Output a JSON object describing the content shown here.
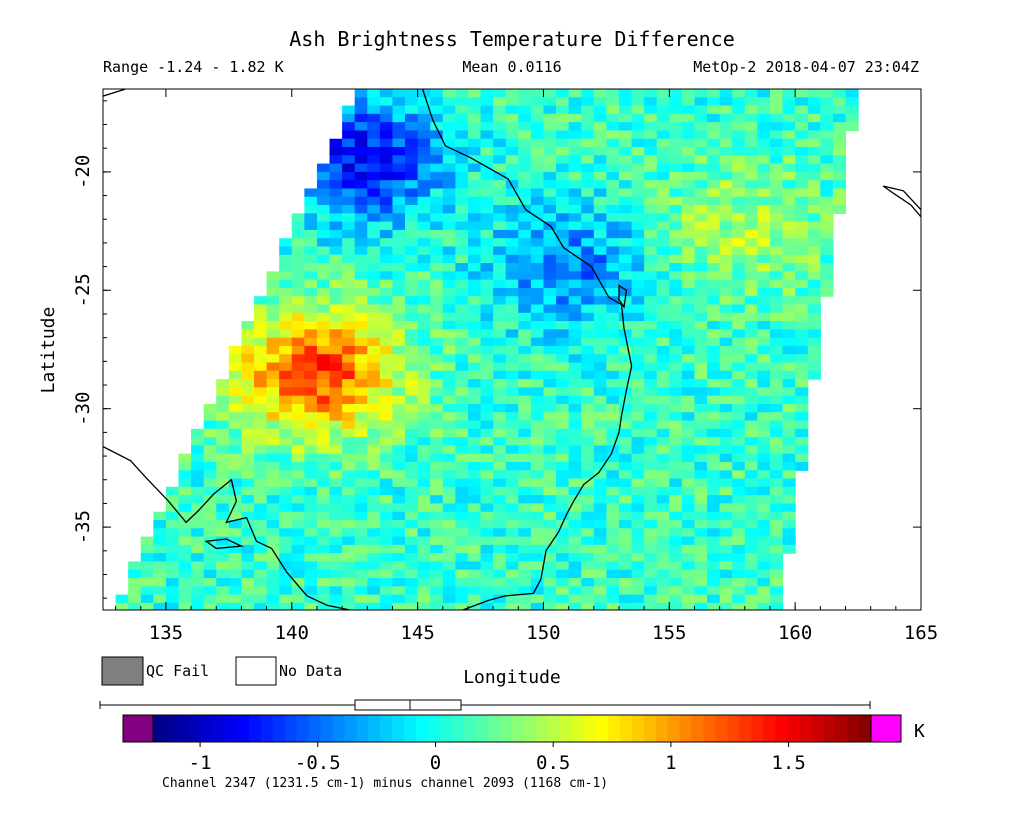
{
  "chart_data": {
    "type": "heatmap",
    "title": "Ash Brightness Temperature Difference",
    "header": {
      "range": "Range -1.24 - 1.82 K",
      "mean": "Mean 0.0116",
      "satellite_time": "MetOp-2 2018-04-07 23:04Z"
    },
    "xlabel": "Longitude",
    "ylabel": "Latitude",
    "xlim": [
      132.5,
      165
    ],
    "ylim": [
      -38.5,
      -16.5
    ],
    "x_ticks": [
      135,
      140,
      145,
      150,
      155,
      160,
      165
    ],
    "y_ticks": [
      -20,
      -25,
      -30,
      -35
    ],
    "colorbar": {
      "range": [
        -1.2,
        1.85
      ],
      "ticks": [
        -1,
        -0.5,
        0,
        0.5,
        1,
        1.5
      ],
      "tick_labels": [
        "-1",
        "-0.5",
        "0",
        "0.5",
        "1",
        "1.5"
      ],
      "unit": "K",
      "underflow_color": "#800080",
      "overflow_color": "#ff00ff",
      "caption": "Channel 2347 (1231.5 cm-1) minus channel 2093 (1168 cm-1)"
    },
    "legend": [
      {
        "label": "QC Fail",
        "color": "#808080"
      },
      {
        "label": "No Data",
        "color": "#ffffff"
      }
    ],
    "colormap": "jet",
    "swath_corners": {
      "top_left": [
        142.6,
        -16.5
      ],
      "top_right": [
        162.5,
        -16.5
      ],
      "bottom_right": [
        159.4,
        -38.5
      ],
      "bottom_left": [
        132.9,
        -38.5
      ]
    },
    "features": [
      {
        "name": "warm ash signal",
        "lon": 141,
        "lat": -28.5,
        "value": 1.2
      },
      {
        "name": "cold band north",
        "lon": 142.8,
        "lat": -19.5,
        "value": -0.9
      },
      {
        "name": "cold patch coast",
        "lon": 151,
        "lat": -24,
        "value": -0.55
      },
      {
        "name": "east warm streak",
        "lon": 158,
        "lat": -22.5,
        "value": 0.35
      }
    ]
  }
}
